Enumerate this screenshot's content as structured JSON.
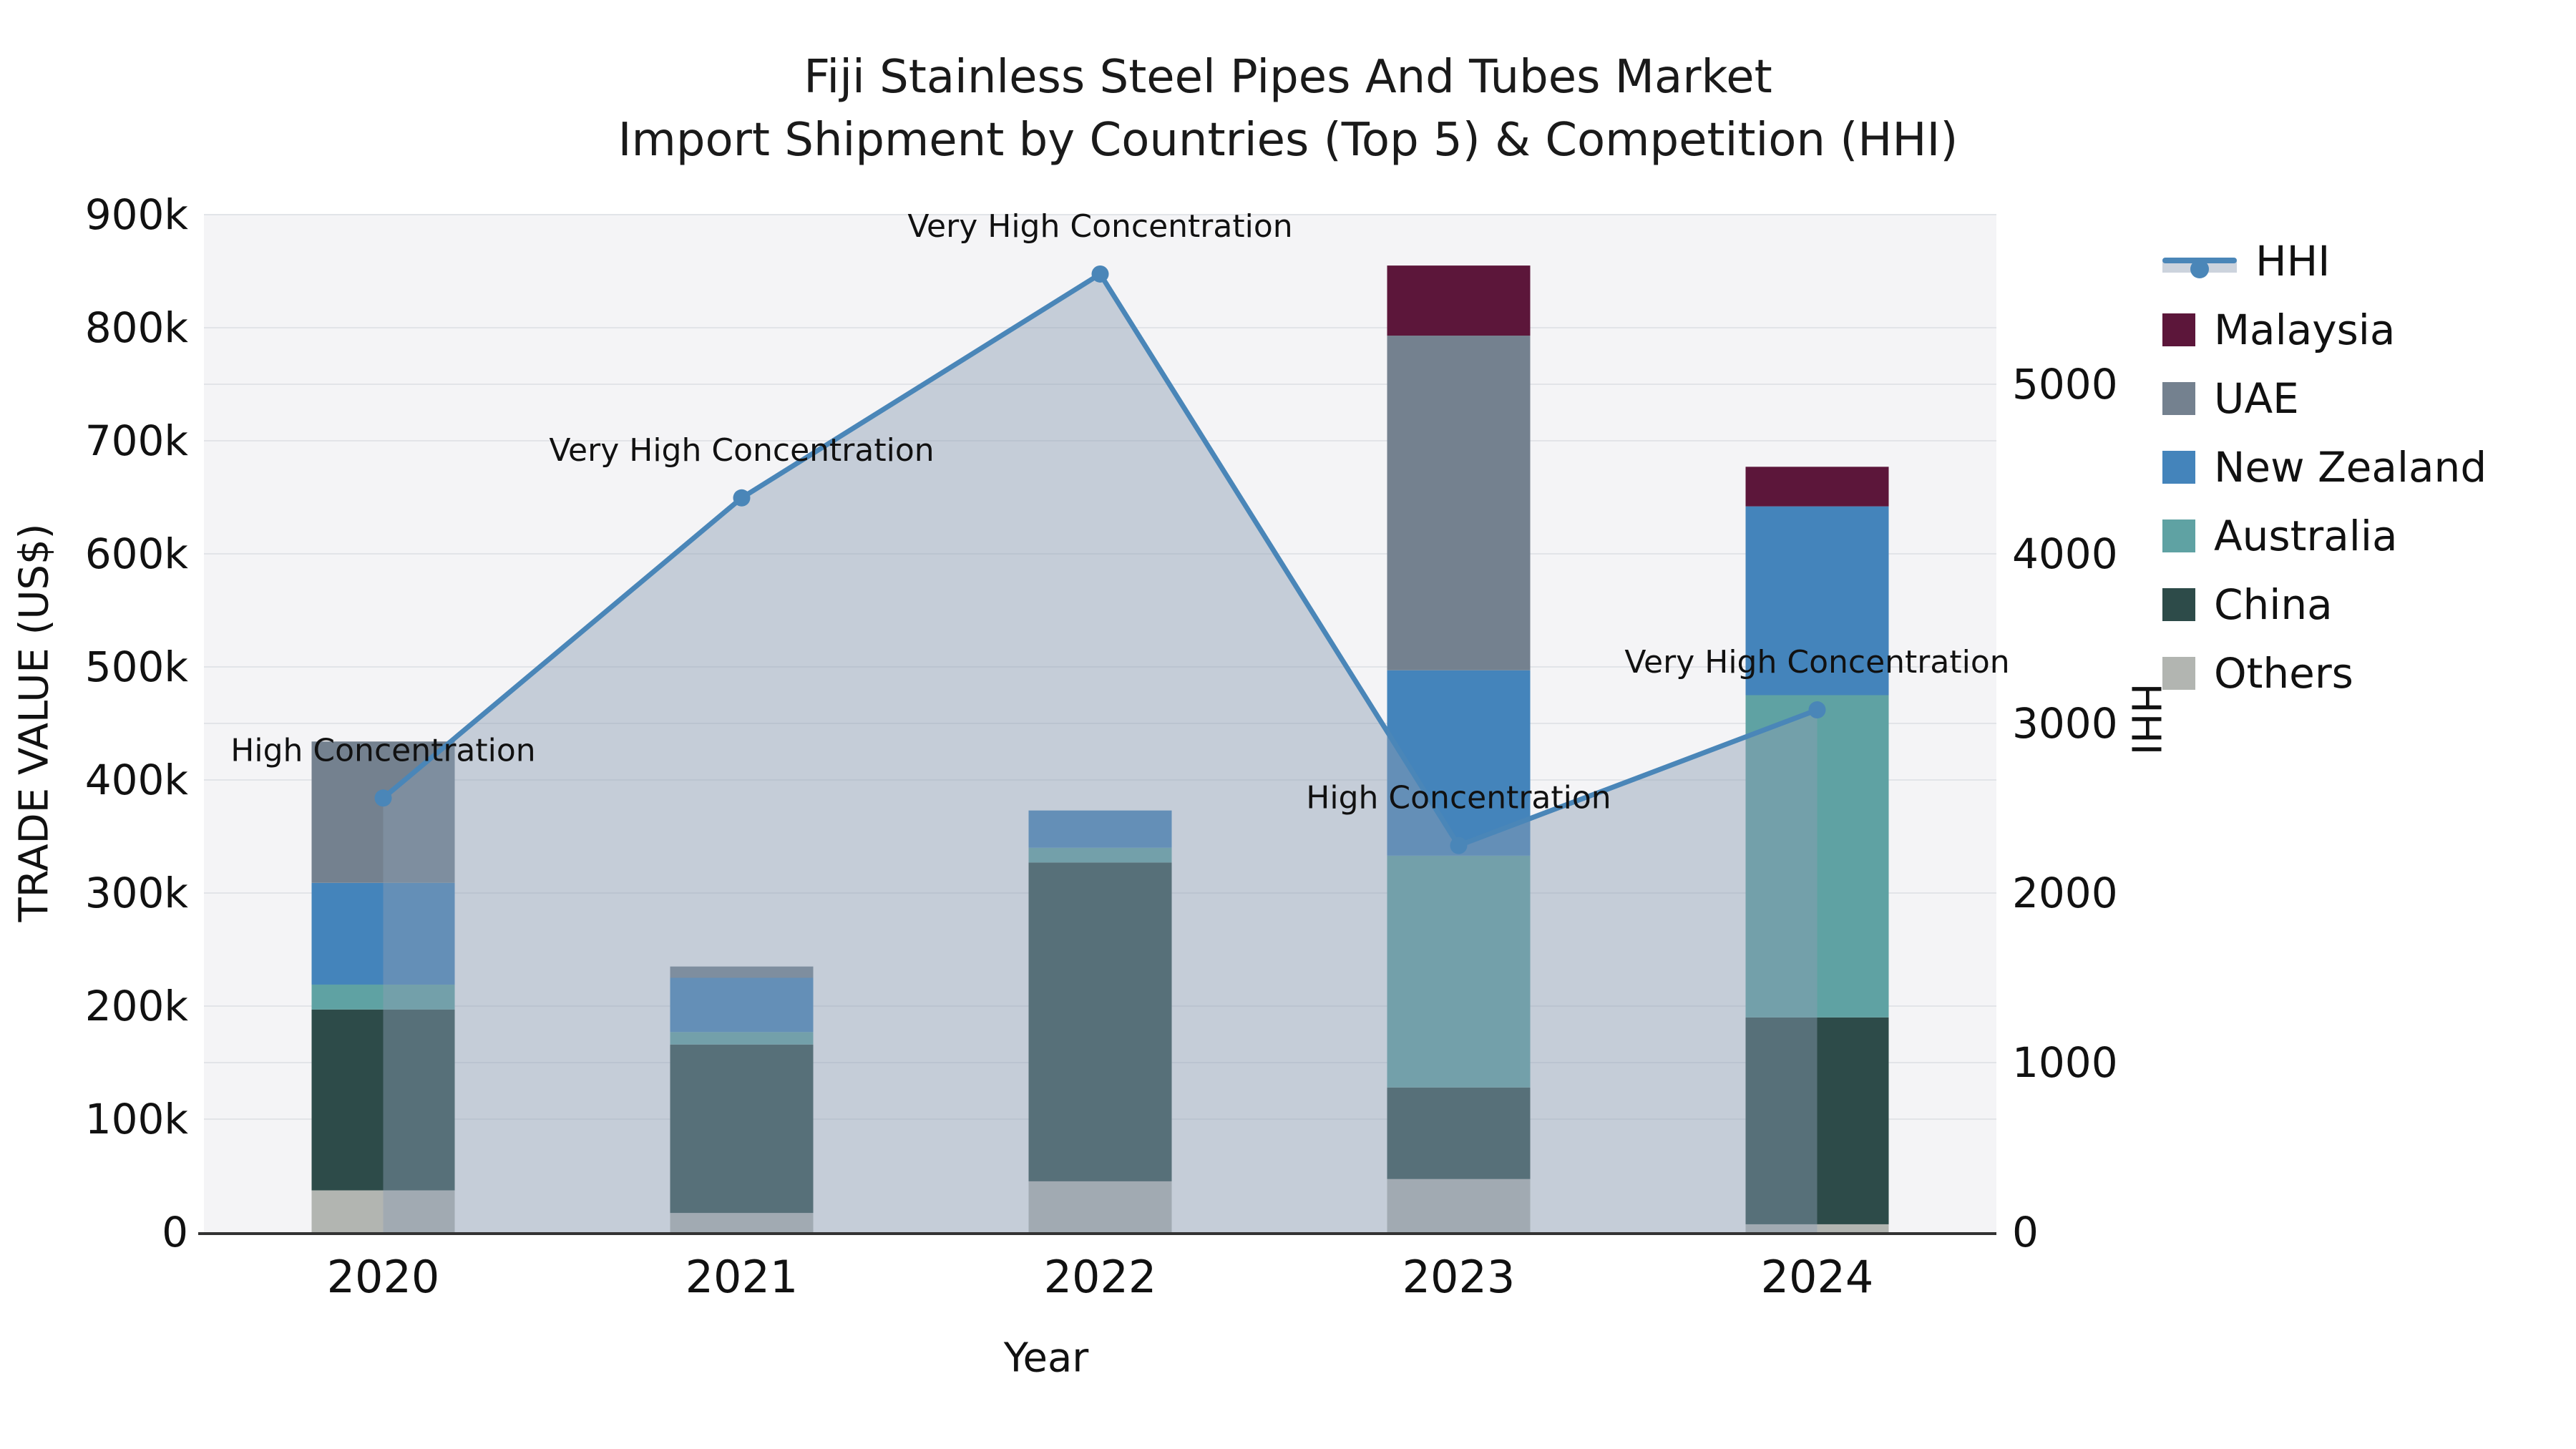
{
  "title": {
    "line1": "Fiji Stainless Steel Pipes And Tubes Market",
    "line2": "Import Shipment by Countries (Top 5) & Competition (HHI)"
  },
  "axes": {
    "x_label": "Year",
    "y_left_label": "TRADE VALUE (US$)",
    "y_right_label": "HHI",
    "y_left_ticks": [
      "0",
      "100k",
      "200k",
      "300k",
      "400k",
      "500k",
      "600k",
      "700k",
      "800k",
      "900k"
    ],
    "y_right_ticks": [
      "0",
      "1000",
      "2000",
      "3000",
      "4000",
      "5000"
    ]
  },
  "legend": {
    "items": [
      {
        "label": "HHI",
        "type": "line",
        "color": "#4a86b8"
      },
      {
        "label": "Malaysia",
        "type": "swatch",
        "color": "#5c163a"
      },
      {
        "label": "UAE",
        "type": "swatch",
        "color": "#74818f"
      },
      {
        "label": "New Zealand",
        "type": "swatch",
        "color": "#4484bb"
      },
      {
        "label": "Australia",
        "type": "swatch",
        "color": "#5fa2a3"
      },
      {
        "label": "China",
        "type": "swatch",
        "color": "#2d4b49"
      },
      {
        "label": "Others",
        "type": "swatch",
        "color": "#b2b5b1"
      }
    ]
  },
  "chart_data": {
    "type": "combo: stacked bar (left axis) + line with area fill (right axis)",
    "title": "Fiji Stainless Steel Pipes And Tubes Market Import Shipment by Countries (Top 5) & Competition (HHI)",
    "categories": [
      "2020",
      "2021",
      "2022",
      "2023",
      "2024"
    ],
    "xlabel": "Year",
    "bar_value_unit": "US$ thousands (trade value)",
    "bar_series": [
      {
        "name": "Others",
        "color": "#b2b5b1",
        "values_k": [
          37,
          17,
          45,
          47,
          7
        ]
      },
      {
        "name": "China",
        "color": "#2d4b49",
        "values_k": [
          160,
          149,
          282,
          81,
          183
        ]
      },
      {
        "name": "Australia",
        "color": "#5fa2a3",
        "values_k": [
          22,
          11,
          13,
          205,
          285
        ]
      },
      {
        "name": "New Zealand",
        "color": "#4484bb",
        "values_k": [
          90,
          48,
          33,
          164,
          167
        ]
      },
      {
        "name": "UAE",
        "color": "#74818f",
        "values_k": [
          125,
          10,
          0,
          296,
          0
        ]
      },
      {
        "name": "Malaysia",
        "color": "#5c163a",
        "values_k": [
          0,
          0,
          0,
          62,
          35
        ]
      }
    ],
    "bar_totals_k": [
      434,
      235,
      373,
      855,
      677
    ],
    "line_series": {
      "name": "HHI",
      "color": "#4a86b8",
      "area_fill": "rgba(140,157,180,0.45)",
      "values": [
        2560,
        4330,
        5650,
        2280,
        3080
      ]
    },
    "annotations": [
      {
        "category": "2020",
        "text": "High Concentration"
      },
      {
        "category": "2021",
        "text": "Very High Concentration"
      },
      {
        "category": "2022",
        "text": "Very High Concentration"
      },
      {
        "category": "2023",
        "text": "High Concentration"
      },
      {
        "category": "2024",
        "text": "Very High Concentration"
      }
    ],
    "y_left": {
      "label": "TRADE VALUE (US$)",
      "min": 0,
      "max_k": 900,
      "tick_step_k": 100
    },
    "y_right": {
      "label": "HHI",
      "min": 0,
      "max": 6000,
      "tick_step": 1000,
      "highest_shown_tick": 5000
    },
    "grid": true,
    "legend_position": "right",
    "plot_background": "#f4f4f6"
  }
}
